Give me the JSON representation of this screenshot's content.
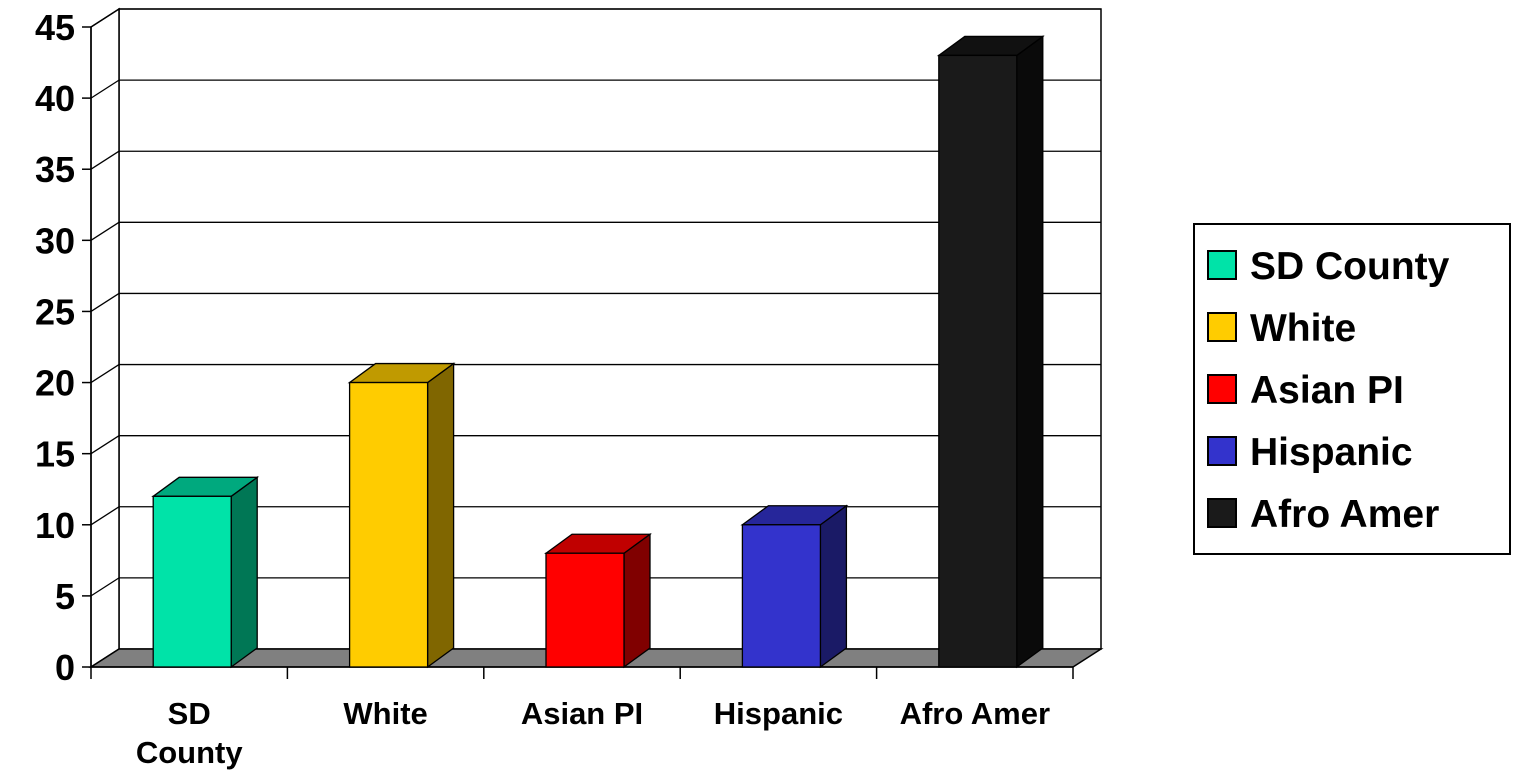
{
  "chart_data": {
    "type": "bar",
    "title": "",
    "xlabel": "",
    "ylabel": "",
    "ylim": [
      0,
      45
    ],
    "yticks": [
      "0",
      "5",
      "10",
      "15",
      "20",
      "25",
      "30",
      "35",
      "40",
      "45"
    ],
    "categories": [
      {
        "lines": [
          "SD",
          "County"
        ]
      },
      {
        "lines": [
          "White"
        ]
      },
      {
        "lines": [
          "Asian PI"
        ]
      },
      {
        "lines": [
          "Hispanic"
        ]
      },
      {
        "lines": [
          "Afro Amer"
        ]
      }
    ],
    "series": [
      {
        "name": "SD County",
        "values": [
          12,
          null,
          null,
          null,
          null
        ],
        "color": "#00e3a8",
        "side_color": "#007755",
        "top_color": "#00a97e"
      },
      {
        "name": "White",
        "values": [
          null,
          20,
          null,
          null,
          null
        ],
        "color": "#ffcc00",
        "side_color": "#806600",
        "top_color": "#c09a00"
      },
      {
        "name": "Asian PI",
        "values": [
          null,
          null,
          8,
          null,
          null
        ],
        "color": "#ff0000",
        "side_color": "#800000",
        "top_color": "#c00000"
      },
      {
        "name": "Hispanic",
        "values": [
          null,
          null,
          null,
          10,
          null
        ],
        "color": "#3333cc",
        "side_color": "#1a1a66",
        "top_color": "#26269a"
      },
      {
        "name": "Afro Amer",
        "values": [
          null,
          null,
          null,
          null,
          43
        ],
        "color": "#1a1a1a",
        "side_color": "#0a0a0a",
        "top_color": "#111111"
      }
    ],
    "grid": true,
    "legend_position": "right",
    "floor_color": "#808080"
  }
}
